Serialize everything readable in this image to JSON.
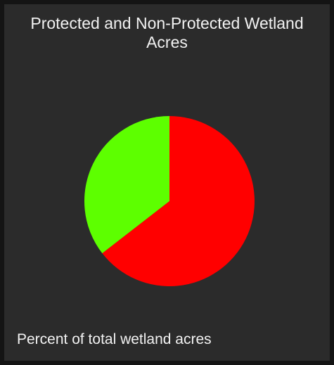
{
  "widget": {
    "title": "Protected and Non-Protected Wetland Acres",
    "footer": "Percent of total wetland acres"
  },
  "chart_data": {
    "type": "pie",
    "title": "Protected and Non-Protected Wetland Acres",
    "start_angle_deg": 0,
    "slices": [
      {
        "value": 64.5,
        "color": "#ff0000"
      },
      {
        "value": 35.5,
        "color": "#5dff00"
      }
    ]
  }
}
